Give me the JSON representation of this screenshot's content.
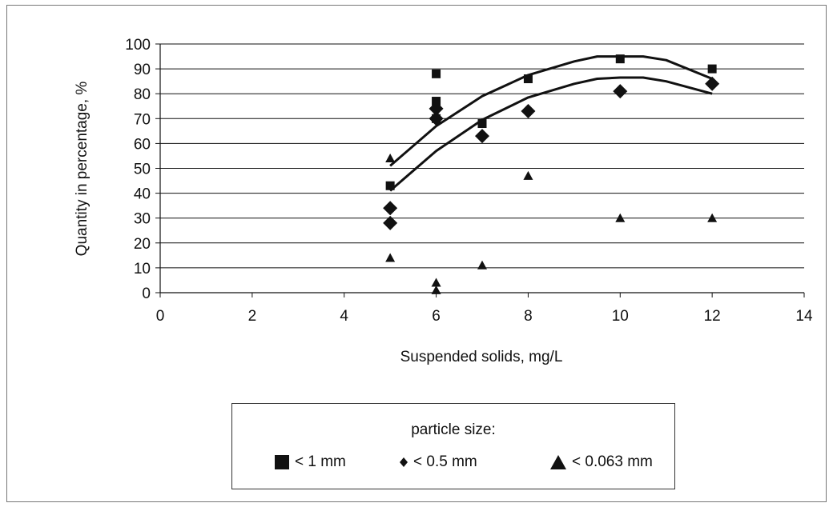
{
  "chart_data": {
    "type": "scatter",
    "title": "",
    "xlabel": "Suspended solids, mg/L",
    "ylabel": "Quantity in percentage, %",
    "xlim": [
      0,
      14
    ],
    "ylim": [
      0,
      100
    ],
    "xticks": [
      "0",
      "2",
      "4",
      "6",
      "8",
      "10",
      "12",
      "14"
    ],
    "yticks": [
      "0",
      "10",
      "20",
      "30",
      "40",
      "50",
      "60",
      "70",
      "80",
      "90",
      "100"
    ],
    "grid": "horizontal",
    "legend": {
      "placement": "bottom",
      "title": "particle size:",
      "entries": [
        "< 1 mm",
        "< 0.5 mm",
        "< 0.063 mm"
      ]
    },
    "series": [
      {
        "name": "< 1 mm",
        "marker": "square",
        "points": [
          [
            5,
            43
          ],
          [
            6,
            88
          ],
          [
            6,
            77
          ],
          [
            6,
            70
          ],
          [
            7,
            68
          ],
          [
            8,
            86
          ],
          [
            10,
            94
          ],
          [
            12,
            90
          ]
        ],
        "trendline": [
          [
            5,
            51
          ],
          [
            6,
            67
          ],
          [
            7,
            79
          ],
          [
            8,
            87.5
          ],
          [
            9,
            93
          ],
          [
            9.5,
            95
          ],
          [
            10,
            95
          ],
          [
            10.5,
            95
          ],
          [
            11,
            93.5
          ],
          [
            12,
            86
          ]
        ]
      },
      {
        "name": "< 0.5 mm",
        "marker": "diamond",
        "points": [
          [
            5,
            34
          ],
          [
            5,
            28
          ],
          [
            6,
            74
          ],
          [
            6,
            70
          ],
          [
            7,
            63
          ],
          [
            8,
            73
          ],
          [
            10,
            81
          ],
          [
            12,
            84
          ]
        ],
        "trendline": [
          [
            5,
            41
          ],
          [
            6,
            57
          ],
          [
            7,
            69.5
          ],
          [
            8,
            78.5
          ],
          [
            9,
            84
          ],
          [
            9.5,
            86
          ],
          [
            10,
            86.5
          ],
          [
            10.5,
            86.5
          ],
          [
            11,
            85
          ],
          [
            12,
            80
          ]
        ]
      },
      {
        "name": "< 0.063 mm",
        "marker": "triangle",
        "points": [
          [
            5,
            54
          ],
          [
            5,
            14
          ],
          [
            6,
            4
          ],
          [
            6,
            1
          ],
          [
            7,
            11
          ],
          [
            8,
            47
          ],
          [
            10,
            30
          ],
          [
            12,
            30
          ]
        ]
      }
    ]
  }
}
